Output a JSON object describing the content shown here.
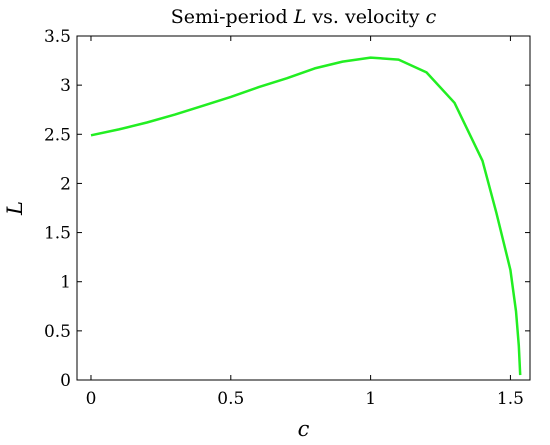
{
  "chart_data": {
    "type": "line",
    "title": "Semi-period L vs. velocity c",
    "title_parts": [
      {
        "text": "Semi-period ",
        "italic": false
      },
      {
        "text": "L",
        "italic": true
      },
      {
        "text": " vs. velocity ",
        "italic": false
      },
      {
        "text": "c",
        "italic": true
      }
    ],
    "xlabel": "c",
    "ylabel": "L",
    "xlim": [
      -0.05,
      1.57
    ],
    "ylim": [
      0,
      3.5
    ],
    "xticks": [
      0,
      0.5,
      1,
      1.5
    ],
    "xtick_labels": [
      "0",
      "0.5",
      "1",
      "1.5"
    ],
    "yticks": [
      0,
      0.5,
      1,
      1.5,
      2,
      2.5,
      3,
      3.5
    ],
    "ytick_labels": [
      "0",
      "0.5",
      "1",
      "1.5",
      "2",
      "2.5",
      "3",
      "3.5"
    ],
    "grid": false,
    "series": [
      {
        "color": "#22ee22",
        "x": [
          0,
          0.1,
          0.2,
          0.3,
          0.4,
          0.5,
          0.6,
          0.7,
          0.8,
          0.9,
          1.0,
          1.1,
          1.2,
          1.3,
          1.4,
          1.45,
          1.5,
          1.52,
          1.53,
          1.535
        ],
        "y": [
          2.49,
          2.55,
          2.62,
          2.7,
          2.79,
          2.88,
          2.98,
          3.07,
          3.17,
          3.24,
          3.28,
          3.26,
          3.13,
          2.82,
          2.23,
          1.7,
          1.12,
          0.7,
          0.35,
          0.05
        ]
      }
    ]
  }
}
